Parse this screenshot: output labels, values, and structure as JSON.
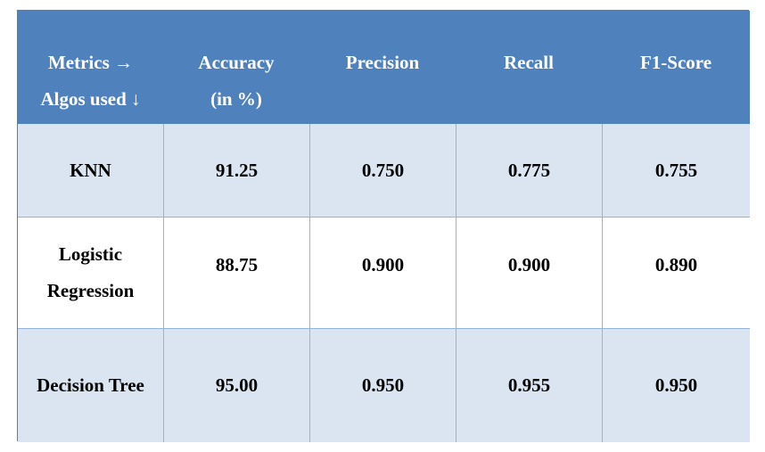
{
  "table": {
    "header": {
      "first": [
        "Metrics →",
        "Algos used ↓"
      ],
      "accuracy": [
        "Accuracy",
        "(in %)"
      ],
      "precision": "Precision",
      "recall": "Recall",
      "f1": "F1-Score"
    },
    "rows": [
      {
        "algo": [
          "KNN"
        ],
        "accuracy": "91.25",
        "precision": "0.750",
        "recall": "0.775",
        "f1": "0.755"
      },
      {
        "algo": [
          "Logistic",
          "Regression"
        ],
        "accuracy": "88.75",
        "precision": "0.900",
        "recall": "0.900",
        "f1": "0.890"
      },
      {
        "algo": [
          "Decision Tree"
        ],
        "accuracy": "95.00",
        "precision": "0.950",
        "recall": "0.955",
        "f1": "0.950"
      }
    ]
  },
  "colors": {
    "header_bg": "#4f81bd",
    "band_bg": "#dbe5f1",
    "grid_line": "#95b3d7"
  }
}
